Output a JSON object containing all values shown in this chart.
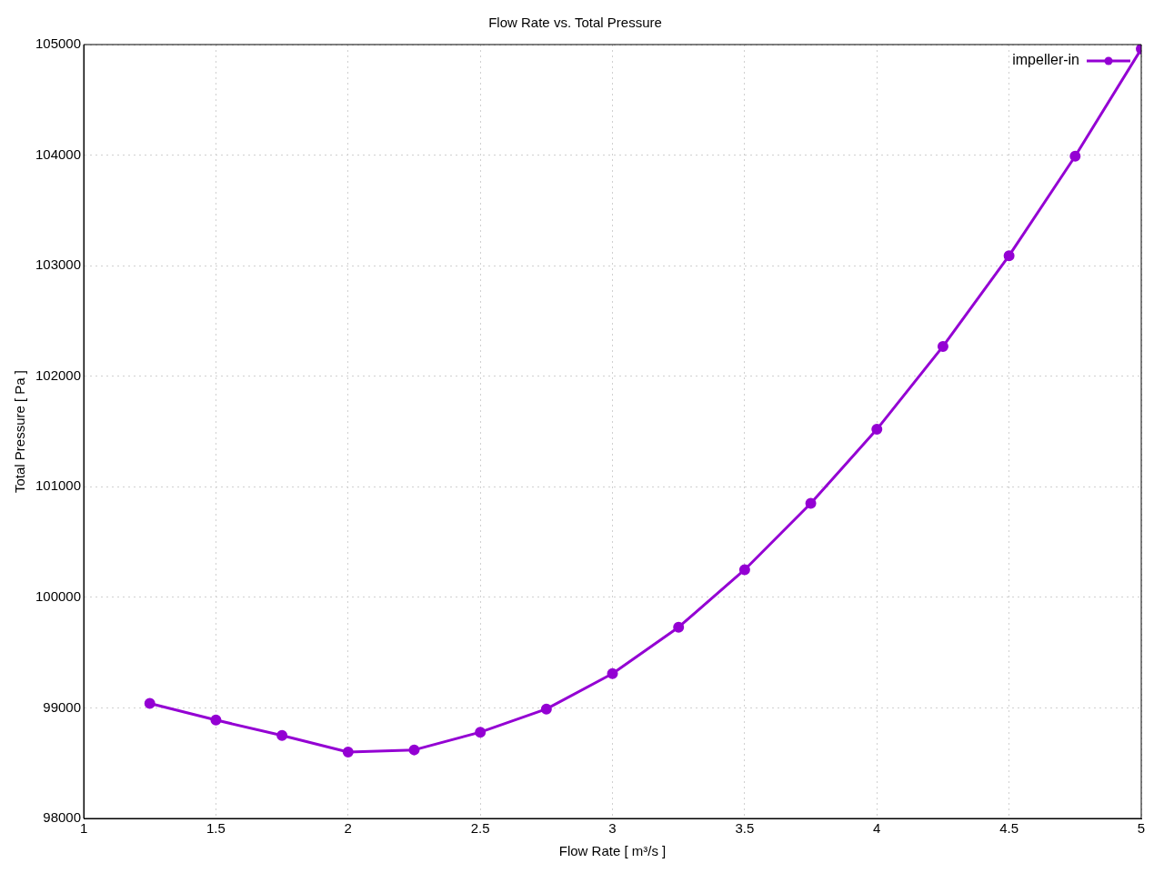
{
  "chart_data": {
    "type": "line",
    "title": "Flow Rate vs. Total Pressure",
    "xlabel": "Flow Rate [ m³/s ]",
    "ylabel": "Total Pressure [ Pa ]",
    "x": [
      1.25,
      1.5,
      1.75,
      2,
      2.25,
      2.5,
      2.75,
      3,
      3.25,
      3.5,
      3.75,
      4,
      4.25,
      4.5,
      4.75,
      5
    ],
    "series": [
      {
        "name": "impeller-in",
        "color": "#9400d3",
        "values": [
          99040,
          98890,
          98750,
          98600,
          98620,
          98780,
          98990,
          99310,
          99730,
          100250,
          100850,
          101520,
          102270,
          103090,
          103990,
          104960
        ]
      }
    ],
    "xlim": [
      1,
      5
    ],
    "xticks": [
      1,
      1.5,
      2,
      2.5,
      3,
      3.5,
      4,
      4.5,
      5
    ],
    "ylim": [
      98000,
      105000
    ],
    "yticks": [
      98000,
      99000,
      100000,
      101000,
      102000,
      103000,
      104000,
      105000
    ],
    "grid": true,
    "legend": "top right",
    "marker": "circle",
    "line_style": "solid"
  }
}
